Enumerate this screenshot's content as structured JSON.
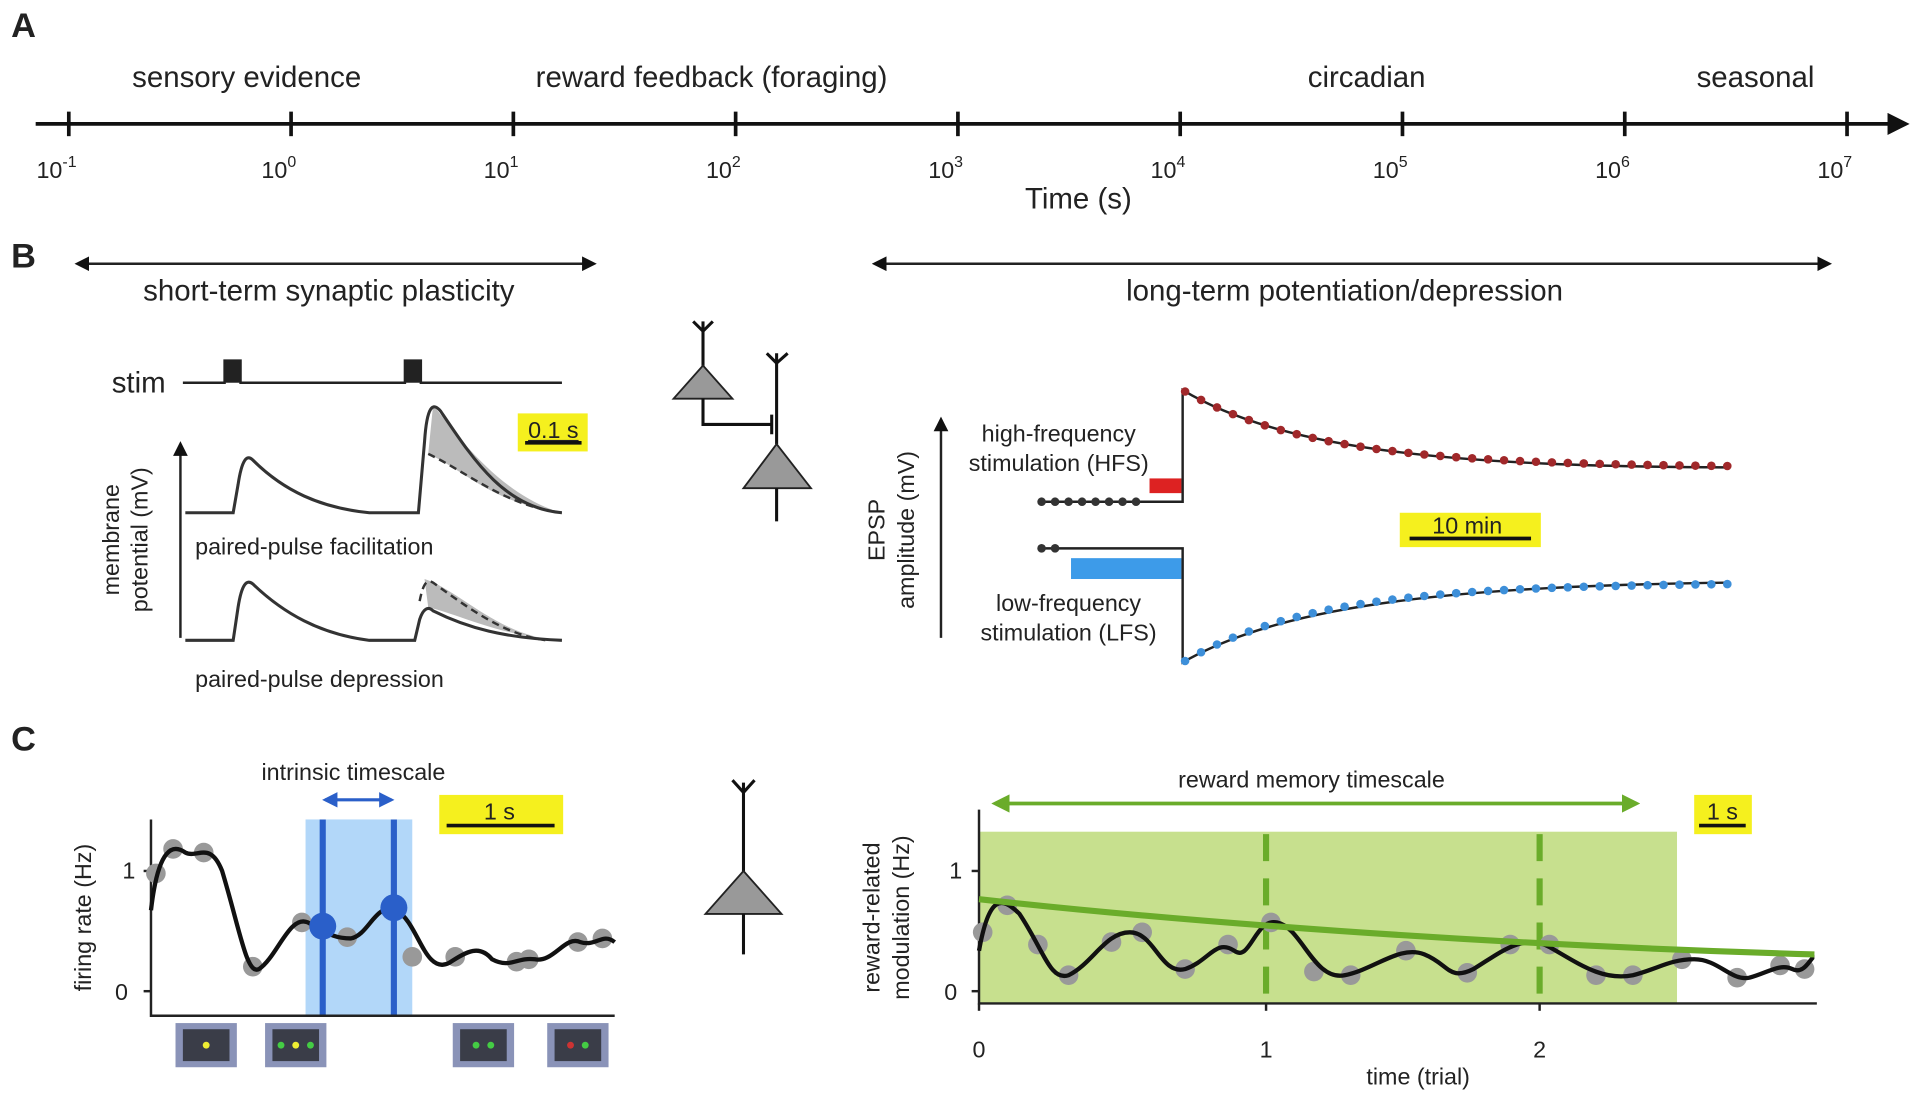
{
  "panel_a": {
    "label": "A",
    "annotations": [
      "sensory evidence",
      "reward feedback (foraging)",
      "circadian",
      "seasonal"
    ],
    "axis_label": "Time (s)",
    "ticks": [
      {
        "base": "10",
        "exponent": "-1"
      },
      {
        "base": "10",
        "exponent": "0"
      },
      {
        "base": "10",
        "exponent": "1"
      },
      {
        "base": "10",
        "exponent": "2"
      },
      {
        "base": "10",
        "exponent": "3"
      },
      {
        "base": "10",
        "exponent": "4"
      },
      {
        "base": "10",
        "exponent": "5"
      },
      {
        "base": "10",
        "exponent": "6"
      },
      {
        "base": "10",
        "exponent": "7"
      }
    ]
  },
  "panel_b": {
    "label": "B",
    "left_title": "short-term synaptic plasticity",
    "right_title": "long-term potentiation/depression",
    "stim": "stim",
    "scale_left": "0.1 s",
    "y_label_left": [
      "membrane",
      "potential (mV)"
    ],
    "facilitation": "paired-pulse facilitation",
    "depression": "paired-pulse depression",
    "hfs": [
      "high-frequency",
      "stimulation (HFS)"
    ],
    "lfs": [
      "low-frequency",
      "stimulation (LFS)"
    ],
    "y_label_right": [
      "EPSP",
      "amplitude (mV)"
    ],
    "scale_right": "10 min"
  },
  "panel_c": {
    "label": "C",
    "left_title": "intrinsic timescale",
    "scale_left": "1 s",
    "y_label_left": "firing rate (Hz)",
    "y_ticks_left": [
      "0",
      "1"
    ],
    "right_title": "reward memory timescale",
    "scale_right": "1 s",
    "y_label_right": [
      "reward-related",
      "modulation (Hz)"
    ],
    "y_ticks_right": [
      "0",
      "1"
    ],
    "x_ticks_right": [
      "0",
      "1",
      "2"
    ],
    "x_label_right": "time (trial)"
  }
}
